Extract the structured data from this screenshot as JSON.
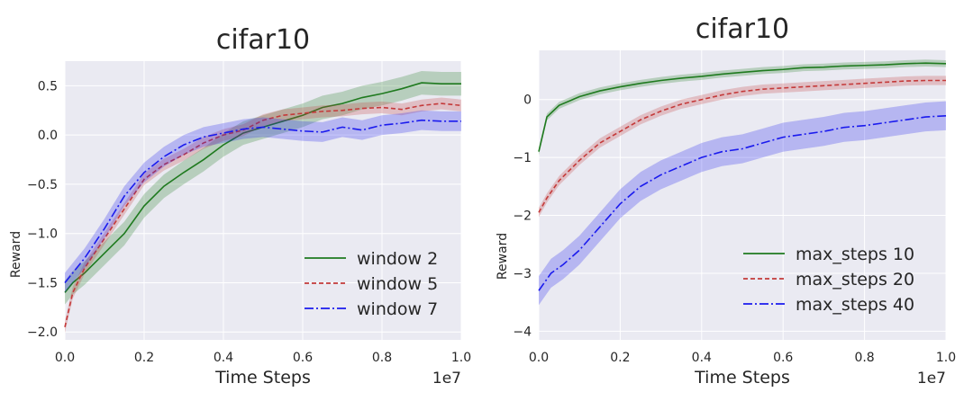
{
  "chart_data": [
    {
      "type": "line",
      "title": "cifar10",
      "xlabel": "Time Steps",
      "ylabel": "Reward",
      "x_multiplier_label": "1e7",
      "xlim": [
        0.0,
        1.0
      ],
      "ylim": [
        -2.08,
        0.75
      ],
      "xticks": [
        "0.0",
        "0.2",
        "0.4",
        "0.6",
        "0.8",
        "1.0"
      ],
      "yticks": [
        "0.5",
        "0.0",
        "−0.5",
        "−1.0",
        "−1.5",
        "−2.0"
      ],
      "legend_position": "lower-right",
      "series": [
        {
          "name": "window 2",
          "color": "#1f7a1f",
          "style": "solid",
          "x": [
            0.0,
            0.02,
            0.05,
            0.1,
            0.15,
            0.2,
            0.25,
            0.3,
            0.35,
            0.4,
            0.45,
            0.5,
            0.55,
            0.6,
            0.65,
            0.7,
            0.75,
            0.8,
            0.85,
            0.9,
            0.95,
            1.0
          ],
          "y": [
            -1.6,
            -1.5,
            -1.4,
            -1.2,
            -1.0,
            -0.72,
            -0.52,
            -0.38,
            -0.25,
            -0.1,
            0.02,
            0.08,
            0.14,
            0.2,
            0.28,
            0.32,
            0.38,
            0.42,
            0.47,
            0.53,
            0.52,
            0.52
          ],
          "band": 0.12
        },
        {
          "name": "window 5",
          "color": "#c43a3a",
          "style": "dashed",
          "x": [
            0.0,
            0.02,
            0.05,
            0.1,
            0.15,
            0.2,
            0.25,
            0.3,
            0.35,
            0.4,
            0.45,
            0.5,
            0.55,
            0.6,
            0.65,
            0.7,
            0.75,
            0.8,
            0.85,
            0.9,
            0.95,
            1.0
          ],
          "y": [
            -1.95,
            -1.6,
            -1.35,
            -1.05,
            -0.75,
            -0.45,
            -0.3,
            -0.2,
            -0.08,
            0.0,
            0.05,
            0.15,
            0.2,
            0.22,
            0.24,
            0.25,
            0.27,
            0.28,
            0.26,
            0.3,
            0.32,
            0.3
          ],
          "band": 0.06
        },
        {
          "name": "window 7",
          "color": "#1a1aee",
          "style": "dashdot",
          "x": [
            0.0,
            0.02,
            0.05,
            0.1,
            0.15,
            0.2,
            0.25,
            0.3,
            0.35,
            0.4,
            0.45,
            0.5,
            0.55,
            0.6,
            0.65,
            0.7,
            0.75,
            0.8,
            0.85,
            0.9,
            0.95,
            1.0
          ],
          "y": [
            -1.5,
            -1.4,
            -1.25,
            -0.95,
            -0.62,
            -0.38,
            -0.22,
            -0.1,
            -0.02,
            0.02,
            0.06,
            0.08,
            0.06,
            0.04,
            0.03,
            0.08,
            0.05,
            0.1,
            0.12,
            0.15,
            0.14,
            0.14
          ],
          "band": 0.1
        }
      ]
    },
    {
      "type": "line",
      "title": "cifar10",
      "xlabel": "Time Steps",
      "ylabel": "Reward",
      "x_multiplier_label": "1e7",
      "xlim": [
        0.0,
        1.0
      ],
      "ylim": [
        -4.15,
        0.85
      ],
      "xticks": [
        "0.0",
        "0.2",
        "0.4",
        "0.6",
        "0.8",
        "1.0"
      ],
      "yticks": [
        "0",
        "−1",
        "−2",
        "−3",
        "−4"
      ],
      "legend_position": "lower-right",
      "series": [
        {
          "name": "max_steps 10",
          "color": "#1f7a1f",
          "style": "solid",
          "x": [
            0.0,
            0.02,
            0.05,
            0.1,
            0.15,
            0.2,
            0.25,
            0.3,
            0.35,
            0.4,
            0.45,
            0.5,
            0.55,
            0.6,
            0.65,
            0.7,
            0.75,
            0.8,
            0.85,
            0.9,
            0.95,
            1.0
          ],
          "y": [
            -0.9,
            -0.3,
            -0.1,
            0.05,
            0.15,
            0.22,
            0.28,
            0.33,
            0.37,
            0.4,
            0.44,
            0.47,
            0.5,
            0.52,
            0.55,
            0.56,
            0.58,
            0.59,
            0.6,
            0.62,
            0.63,
            0.62
          ],
          "band": 0.06
        },
        {
          "name": "max_steps 20",
          "color": "#c43a3a",
          "style": "dashed",
          "x": [
            0.0,
            0.02,
            0.05,
            0.1,
            0.15,
            0.2,
            0.25,
            0.3,
            0.35,
            0.4,
            0.45,
            0.5,
            0.55,
            0.6,
            0.65,
            0.7,
            0.75,
            0.8,
            0.85,
            0.9,
            0.95,
            1.0
          ],
          "y": [
            -1.95,
            -1.7,
            -1.4,
            -1.05,
            -0.75,
            -0.55,
            -0.35,
            -0.2,
            -0.08,
            0.0,
            0.08,
            0.14,
            0.18,
            0.2,
            0.22,
            0.24,
            0.26,
            0.28,
            0.3,
            0.32,
            0.33,
            0.33
          ],
          "band": 0.08
        },
        {
          "name": "max_steps 40",
          "color": "#1a1aee",
          "style": "dashdot",
          "x": [
            0.0,
            0.01,
            0.03,
            0.06,
            0.1,
            0.15,
            0.2,
            0.25,
            0.3,
            0.35,
            0.4,
            0.45,
            0.5,
            0.55,
            0.6,
            0.65,
            0.7,
            0.75,
            0.8,
            0.85,
            0.9,
            0.95,
            1.0
          ],
          "y": [
            -3.3,
            -3.2,
            -3.0,
            -2.85,
            -2.6,
            -2.2,
            -1.8,
            -1.5,
            -1.3,
            -1.15,
            -1.0,
            -0.9,
            -0.85,
            -0.75,
            -0.65,
            -0.6,
            -0.55,
            -0.48,
            -0.45,
            -0.4,
            -0.35,
            -0.3,
            -0.28
          ],
          "band": 0.25
        }
      ]
    }
  ]
}
